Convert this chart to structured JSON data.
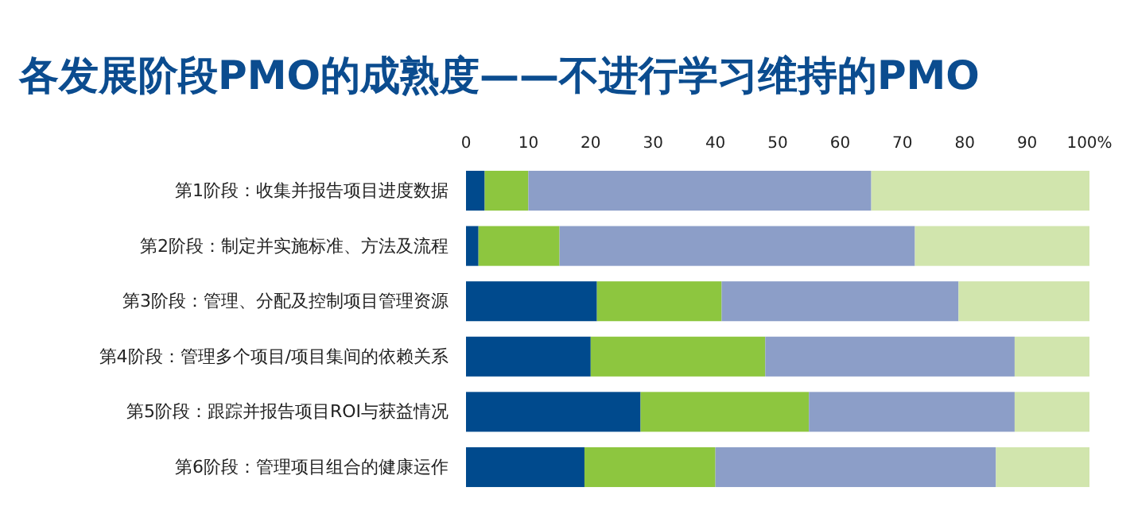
{
  "chart_data": {
    "type": "bar",
    "orientation": "horizontal",
    "stacked": true,
    "title": "各发展阶段PMO的成熟度——不进行学习维持的PMO",
    "categories": [
      "第1阶段：收集并报告项目进度数据",
      "第2阶段：制定并实施标准、方法及流程",
      "第3阶段：管理、分配及控制项目管理资源",
      "第4阶段：管理多个项目/项目集间的依赖关系",
      "第5阶段：跟踪并报告项目ROI与获益情况",
      "第6阶段：管理项目组合的健康运作"
    ],
    "series": [
      {
        "color": "#004a8d",
        "values": [
          3,
          2,
          21,
          20,
          28,
          19
        ]
      },
      {
        "color": "#8dc63f",
        "values": [
          7,
          13,
          20,
          28,
          27,
          21
        ]
      },
      {
        "color": "#8c9ec8",
        "values": [
          55,
          57,
          38,
          40,
          33,
          45
        ]
      },
      {
        "color": "#d1e5ad",
        "values": [
          35,
          28,
          21,
          12,
          12,
          15
        ]
      }
    ],
    "xlim": [
      0,
      100
    ],
    "xticks": [
      0,
      10,
      20,
      30,
      40,
      50,
      60,
      70,
      80,
      90,
      {
        "value": 100,
        "label": "100%"
      }
    ],
    "grid": false
  }
}
